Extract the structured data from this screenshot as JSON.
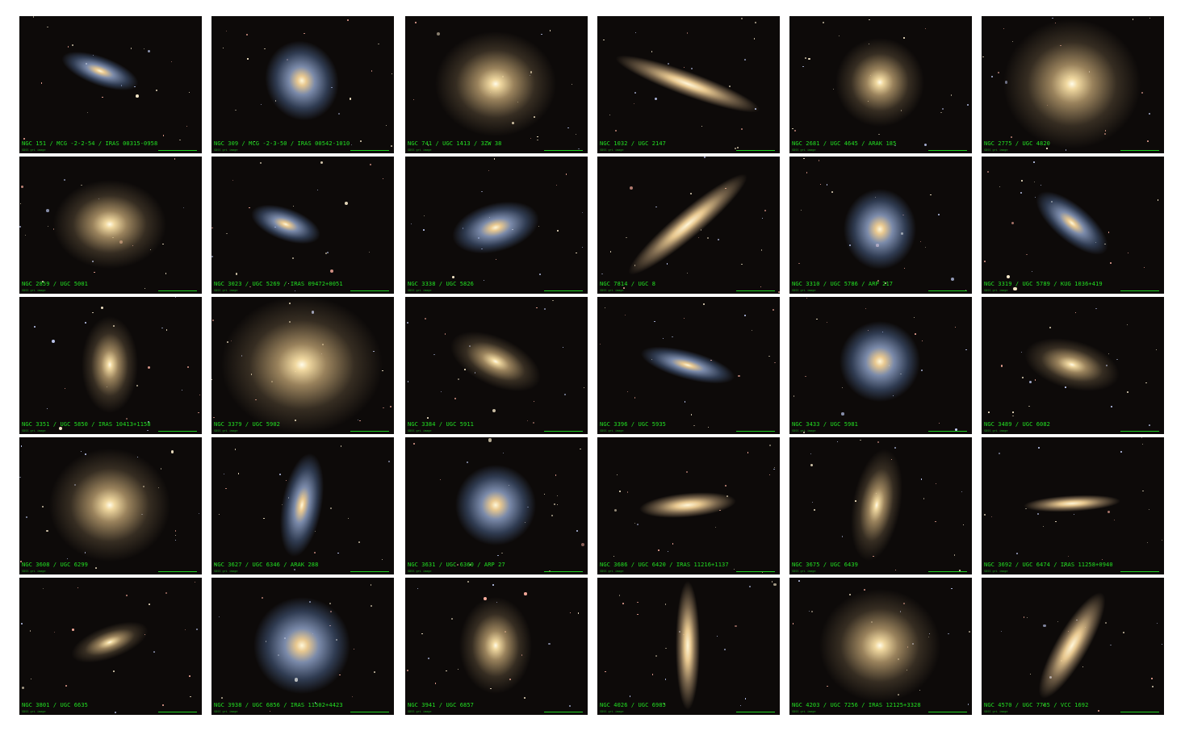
{
  "image_note": "SDSS gri image",
  "tiles": [
    {
      "label": "NGC 151 / MCG -2-2-54 / IRAS 00315-0958"
    },
    {
      "label": "NGC 309 / MCG -2-3-50 / IRAS 00542-1010"
    },
    {
      "label": "NGC 741 / UGC 1413 / 3ZW 38"
    },
    {
      "label": "NGC 1032 / UGC 2147"
    },
    {
      "label": "NGC 2681 / UGC 4645 / ARAK 185"
    },
    {
      "label": "NGC 2775 / UGC 4820"
    },
    {
      "label": "NGC 2859 / UGC 5001"
    },
    {
      "label": "NGC 3023 / UGC 5269 / IRAS 09472+0051"
    },
    {
      "label": "NGC 3338 / UGC 5826"
    },
    {
      "label": "NGC 7814 / UGC 8"
    },
    {
      "label": "NGC 3310 / UGC 5786 / ARP 217"
    },
    {
      "label": "NGC 3319 / UGC 5789 / KUG 1036+419"
    },
    {
      "label": "NGC 3351 / UGC 5850 / IRAS 10413+1158"
    },
    {
      "label": "NGC 3379 / UGC 5902"
    },
    {
      "label": "NGC 3384 / UGC 5911"
    },
    {
      "label": "NGC 3396 / UGC 5935"
    },
    {
      "label": "NGC 3433 / UGC 5981"
    },
    {
      "label": "NGC 3489 / UGC 6082"
    },
    {
      "label": "NGC 3608 / UGC 6299"
    },
    {
      "label": "NGC 3627 / UGC 6346 / ARAK 288"
    },
    {
      "label": "NGC 3631 / UGC 6360 / ARP 27"
    },
    {
      "label": "NGC 3686 / UGC 6420 / IRAS 11216+1137"
    },
    {
      "label": "NGC 3675 / UGC 6439"
    },
    {
      "label": "NGC 3692 / UGC 6474 / IRAS 11258+0940"
    },
    {
      "label": "NGC 3801 / UGC 6635"
    },
    {
      "label": "NGC 3938 / UGC 6856 / IRAS 11502+4423"
    },
    {
      "label": "NGC 3941 / UGC 6857"
    },
    {
      "label": "NGC 4026 / UGC 6985"
    },
    {
      "label": "NGC 4203 / UGC 7256 / IRAS 12125+3328"
    },
    {
      "label": "NGC 4570 / UGC 7785 / VCC 1692"
    }
  ]
}
